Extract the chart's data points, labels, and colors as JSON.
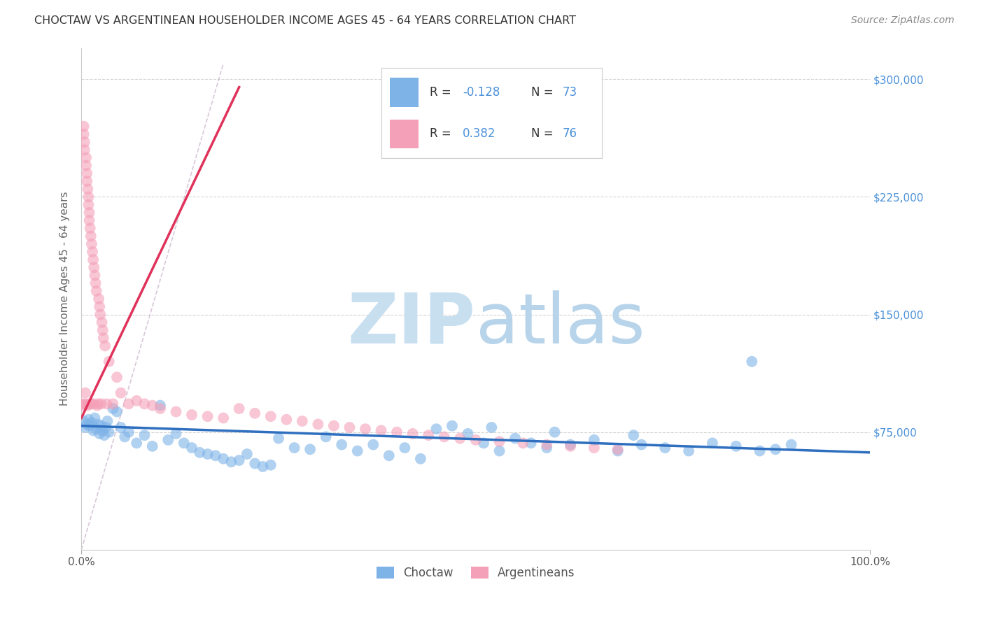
{
  "title": "CHOCTAW VS ARGENTINEAN HOUSEHOLDER INCOME AGES 45 - 64 YEARS CORRELATION CHART",
  "source": "Source: ZipAtlas.com",
  "ylabel": "Householder Income Ages 45 - 64 years",
  "yticks": [
    0,
    75000,
    150000,
    225000,
    300000
  ],
  "ytick_labels": [
    "",
    "$75,000",
    "$150,000",
    "$225,000",
    "$300,000"
  ],
  "choctaw_color": "#7eb3e8",
  "argentinean_color": "#f4a0b8",
  "choctaw_line_color": "#2f6fbf",
  "argentinean_line_color": "#e0325a",
  "ref_line_color": "#c8b0c8",
  "background_color": "#ffffff",
  "grid_color": "#c8c8c8",
  "title_color": "#333333",
  "right_tick_color": "#4a90d9",
  "legend_label_color": "#333333",
  "legend_value_color": "#4a90d9",
  "watermark_zip_color": "#c8dff0",
  "watermark_atlas_color": "#b8d4ea",
  "xlim": [
    0,
    100
  ],
  "ylim": [
    0,
    320000
  ],
  "choctaw_scatter_x": [
    0.3,
    0.5,
    0.7,
    0.9,
    1.1,
    1.3,
    1.5,
    1.7,
    1.9,
    2.1,
    2.3,
    2.5,
    2.7,
    2.9,
    3.1,
    3.3,
    3.5,
    4.0,
    4.5,
    5.0,
    5.5,
    6.0,
    7.0,
    8.0,
    9.0,
    10.0,
    11.0,
    12.0,
    13.0,
    14.0,
    15.0,
    16.0,
    17.0,
    18.0,
    19.0,
    20.0,
    21.0,
    22.0,
    23.0,
    24.0,
    25.0,
    27.0,
    29.0,
    31.0,
    33.0,
    35.0,
    37.0,
    39.0,
    41.0,
    43.0,
    45.0,
    47.0,
    49.0,
    51.0,
    53.0,
    55.0,
    57.0,
    59.0,
    62.0,
    65.0,
    68.0,
    71.0,
    74.0,
    77.0,
    80.0,
    83.0,
    86.0,
    88.0,
    90.0,
    85.0,
    70.0,
    60.0,
    52.0
  ],
  "choctaw_scatter_y": [
    82000,
    78000,
    80000,
    83000,
    79000,
    81000,
    76000,
    84000,
    77000,
    80000,
    74000,
    79000,
    76000,
    73000,
    78000,
    82000,
    75000,
    90000,
    88000,
    78000,
    72000,
    75000,
    68000,
    73000,
    66000,
    92000,
    70000,
    74000,
    68000,
    65000,
    62000,
    61000,
    60000,
    58000,
    56000,
    57000,
    61000,
    55000,
    53000,
    54000,
    71000,
    65000,
    64000,
    72000,
    67000,
    63000,
    67000,
    60000,
    65000,
    58000,
    77000,
    79000,
    74000,
    68000,
    63000,
    71000,
    68000,
    65000,
    67000,
    70000,
    63000,
    67000,
    65000,
    63000,
    68000,
    66000,
    63000,
    64000,
    67000,
    120000,
    73000,
    75000,
    78000
  ],
  "argentinean_scatter_x": [
    0.1,
    0.2,
    0.3,
    0.3,
    0.4,
    0.4,
    0.5,
    0.5,
    0.6,
    0.6,
    0.7,
    0.7,
    0.8,
    0.8,
    0.9,
    0.9,
    1.0,
    1.0,
    1.0,
    1.1,
    1.2,
    1.2,
    1.3,
    1.4,
    1.5,
    1.5,
    1.6,
    1.7,
    1.8,
    1.9,
    2.0,
    2.1,
    2.2,
    2.3,
    2.4,
    2.5,
    2.6,
    2.7,
    2.8,
    3.0,
    3.2,
    3.5,
    4.0,
    4.5,
    5.0,
    6.0,
    7.0,
    8.0,
    9.0,
    10.0,
    12.0,
    14.0,
    16.0,
    18.0,
    20.0,
    22.0,
    24.0,
    26.0,
    28.0,
    30.0,
    32.0,
    34.0,
    36.0,
    38.0,
    40.0,
    42.0,
    44.0,
    46.0,
    48.0,
    50.0,
    53.0,
    56.0,
    59.0,
    62.0,
    65.0,
    68.0
  ],
  "argentinean_scatter_y": [
    93000,
    92000,
    270000,
    265000,
    260000,
    255000,
    100000,
    93000,
    250000,
    245000,
    240000,
    235000,
    230000,
    92000,
    225000,
    220000,
    215000,
    93000,
    210000,
    205000,
    200000,
    93000,
    195000,
    190000,
    185000,
    93000,
    180000,
    175000,
    170000,
    165000,
    92000,
    93000,
    160000,
    155000,
    150000,
    93000,
    145000,
    140000,
    135000,
    130000,
    93000,
    120000,
    93000,
    110000,
    100000,
    93000,
    95000,
    93000,
    92000,
    90000,
    88000,
    86000,
    85000,
    84000,
    90000,
    87000,
    85000,
    83000,
    82000,
    80000,
    79000,
    78000,
    77000,
    76000,
    75000,
    74000,
    73000,
    72000,
    71000,
    70000,
    69000,
    68000,
    67000,
    66000,
    65000,
    64000
  ],
  "choctaw_line_x": [
    0,
    100
  ],
  "choctaw_line_y": [
    79000,
    62000
  ],
  "argentinean_line_x": [
    0,
    20
  ],
  "argentinean_line_y": [
    84000,
    295000
  ],
  "ref_line_x": [
    0,
    18
  ],
  "ref_line_y": [
    0,
    310000
  ]
}
